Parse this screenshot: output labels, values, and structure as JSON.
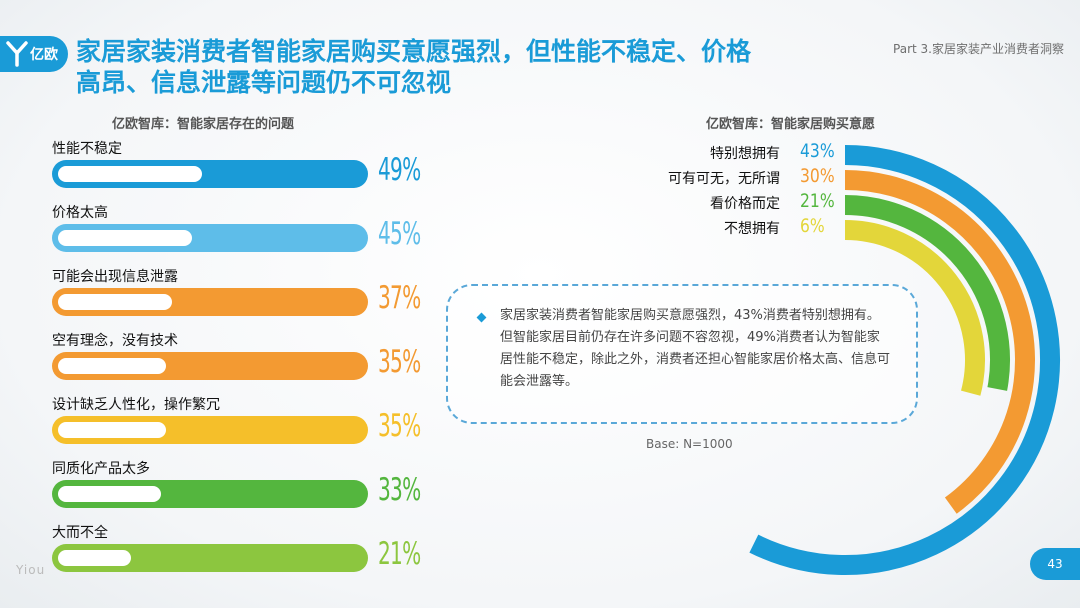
{
  "header": {
    "logo_text": "亿欧",
    "title_line1": "家居家装消费者智能家居购买意愿强烈，但性能不稳定、价格",
    "title_line2": "高昂、信息泄露等问题仍不可忽视",
    "part_label": "Part 3.家居家装产业消费者洞察"
  },
  "left_chart_title": "亿欧智库：智能家居存在的问题",
  "right_chart_title": "亿欧智库：智能家居购买意愿",
  "callout": {
    "text": "家居家装消费者智能家居购买意愿强烈，43%消费者特别想拥有。但智能家居目前仍存在许多问题不容忽视，49%消费者认为智能家居性能不稳定，除此之外，消费者还担心智能家居价格太高、信息可能会泄露等。"
  },
  "base_note": "Base: N=1000",
  "footer": {
    "brand": "Yiou",
    "page": "43"
  },
  "colors": {
    "brand_blue": "#1a9bd7",
    "light_blue": "#5ebde9",
    "orange": "#f39a32",
    "yellow": "#f5bf2a",
    "green": "#54b63e",
    "olive_green": "#8cc63f",
    "lemon": "#e3d63a"
  },
  "chart_data": [
    {
      "type": "bar",
      "title": "亿欧智库：智能家居存在的问题",
      "categories": [
        "性能不稳定",
        "价格太高",
        "可能会出现信息泄露",
        "空有理念，没有技术",
        "设计缺乏人性化，操作繁冗",
        "同质化产品太多",
        "大而不全"
      ],
      "values": [
        49,
        45,
        37,
        35,
        35,
        33,
        21
      ],
      "value_labels": [
        "49%",
        "45%",
        "37%",
        "35%",
        "35%",
        "33%",
        "21%"
      ],
      "bar_colors": [
        "#1a9bd7",
        "#5ebde9",
        "#f39a32",
        "#f39a32",
        "#f5bf2a",
        "#54b63e",
        "#8cc63f"
      ],
      "unit": "%",
      "ylim": [
        0,
        100
      ]
    },
    {
      "type": "radial-bar",
      "title": "亿欧智库：智能家居购买意愿",
      "categories": [
        "特别想拥有",
        "可有可无，无所谓",
        "看价格而定",
        "不想拥有"
      ],
      "values": [
        43,
        30,
        21,
        6
      ],
      "value_labels": [
        "43%",
        "30%",
        "21%",
        "6%"
      ],
      "ring_colors": [
        "#1a9bd7",
        "#f39a32",
        "#54b63e",
        "#e3d63a"
      ],
      "unit": "%"
    }
  ]
}
